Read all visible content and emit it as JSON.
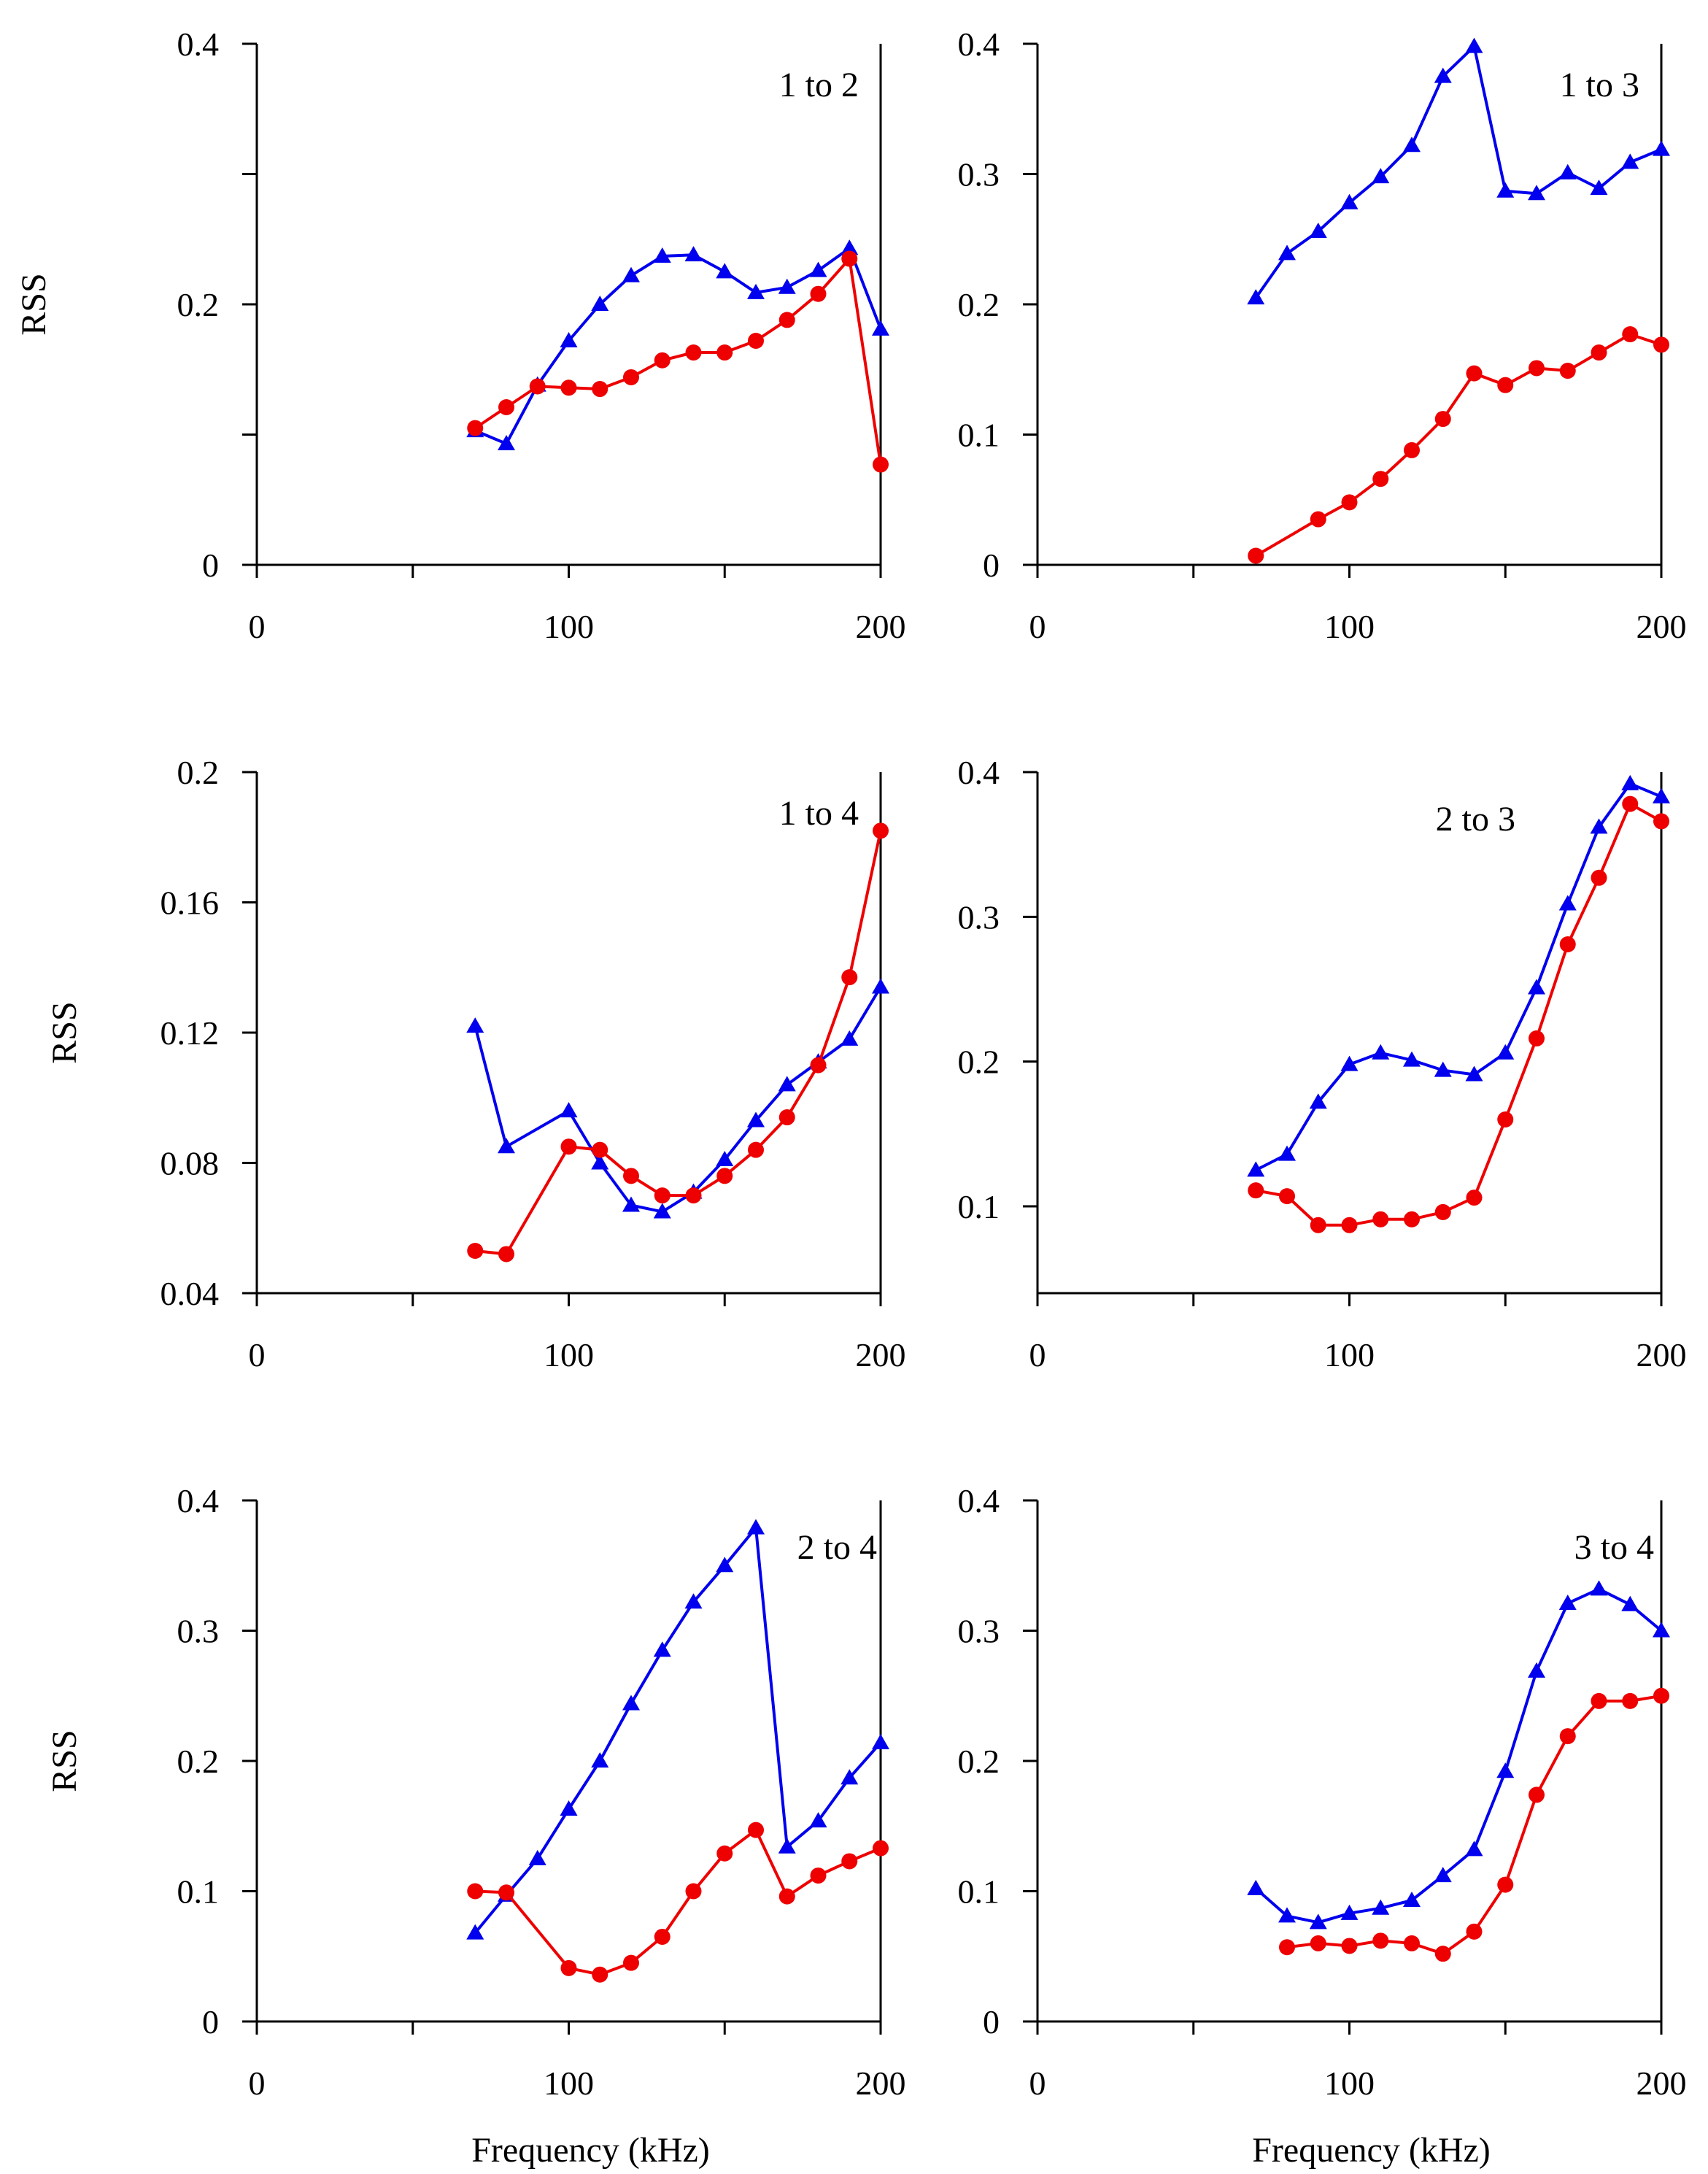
{
  "series_colors": {
    "triangle": "#0000ee",
    "circle": "#ee0000"
  },
  "chart_data": [
    {
      "type": "line",
      "label": "1 to 2",
      "ylabel": "RSS",
      "xlabel": "",
      "xlim": [
        0,
        200
      ],
      "ylim": [
        0,
        0.4
      ],
      "xticks": [
        0,
        50,
        100,
        150,
        200
      ],
      "xtick_labels": [
        "0",
        "",
        "100",
        "",
        "200"
      ],
      "yticks": [
        0,
        0.1,
        0.2,
        0.3,
        0.4
      ],
      "ytick_labels": [
        "0",
        "",
        "0.2",
        "",
        "0.4"
      ],
      "series": [
        {
          "name": "triangle",
          "marker": "triangle",
          "color": "#0000ee",
          "x": [
            70,
            80,
            90,
            100,
            110,
            120,
            130,
            140,
            150,
            160,
            170,
            180,
            190,
            200
          ],
          "y": [
            0.103,
            0.093,
            0.138,
            0.172,
            0.2,
            0.222,
            0.237,
            0.238,
            0.225,
            0.209,
            0.213,
            0.226,
            0.243,
            0.181
          ]
        },
        {
          "name": "circle",
          "marker": "circle",
          "color": "#ee0000",
          "x": [
            70,
            80,
            90,
            100,
            110,
            120,
            130,
            140,
            150,
            160,
            170,
            180,
            190,
            200
          ],
          "y": [
            0.105,
            0.121,
            0.137,
            0.136,
            0.135,
            0.144,
            0.157,
            0.163,
            0.163,
            0.172,
            0.188,
            0.208,
            0.235,
            0.077
          ]
        }
      ]
    },
    {
      "type": "line",
      "label": "1 to 3",
      "ylabel": "",
      "xlabel": "",
      "xlim": [
        0,
        200
      ],
      "ylim": [
        0,
        0.4
      ],
      "xticks": [
        0,
        50,
        100,
        150,
        200
      ],
      "xtick_labels": [
        "0",
        "",
        "100",
        "",
        "200"
      ],
      "yticks": [
        0,
        0.1,
        0.2,
        0.3,
        0.4
      ],
      "ytick_labels": [
        "0",
        "0.1",
        "0.2",
        "0.3",
        "0.4"
      ],
      "series": [
        {
          "name": "triangle",
          "marker": "triangle",
          "color": "#0000ee",
          "x": [
            70,
            80,
            90,
            100,
            110,
            120,
            130,
            140,
            150,
            160,
            170,
            180,
            190,
            200
          ],
          "y": [
            0.205,
            0.239,
            0.256,
            0.278,
            0.298,
            0.322,
            0.375,
            0.398,
            0.287,
            0.285,
            0.301,
            0.289,
            0.309,
            0.319
          ]
        },
        {
          "name": "circle",
          "marker": "circle",
          "color": "#ee0000",
          "x": [
            70,
            90,
            100,
            110,
            120,
            130,
            140,
            150,
            160,
            170,
            180,
            190,
            200
          ],
          "y": [
            0.007,
            0.035,
            0.048,
            0.066,
            0.088,
            0.112,
            0.147,
            0.138,
            0.151,
            0.149,
            0.163,
            0.177,
            0.169
          ]
        }
      ]
    },
    {
      "type": "line",
      "label": "1 to 4",
      "ylabel": "RSS",
      "xlabel": "",
      "xlim": [
        0,
        200
      ],
      "ylim": [
        0.04,
        0.2
      ],
      "xticks": [
        0,
        50,
        100,
        150,
        200
      ],
      "xtick_labels": [
        "0",
        "",
        "100",
        "",
        "200"
      ],
      "yticks": [
        0.04,
        0.08,
        0.12,
        0.16,
        0.2
      ],
      "ytick_labels": [
        "0.04",
        "0.08",
        "0.12",
        "0.16",
        "0.2"
      ],
      "series": [
        {
          "name": "triangle",
          "marker": "triangle",
          "color": "#0000ee",
          "x": [
            70,
            80,
            100,
            110,
            120,
            130,
            140,
            150,
            160,
            170,
            180,
            190,
            200
          ],
          "y": [
            0.122,
            0.085,
            0.096,
            0.08,
            0.067,
            0.065,
            0.071,
            0.081,
            0.093,
            0.104,
            0.111,
            0.118,
            0.134
          ]
        },
        {
          "name": "circle",
          "marker": "circle",
          "color": "#ee0000",
          "x": [
            70,
            80,
            100,
            110,
            120,
            130,
            140,
            150,
            160,
            170,
            180,
            190,
            200
          ],
          "y": [
            0.053,
            0.052,
            0.085,
            0.084,
            0.076,
            0.07,
            0.07,
            0.076,
            0.084,
            0.094,
            0.11,
            0.137,
            0.182
          ]
        }
      ]
    },
    {
      "type": "line",
      "label": "2 to 3",
      "ylabel": "",
      "xlabel": "",
      "xlim": [
        0,
        200
      ],
      "ylim": [
        0.04,
        0.4
      ],
      "xticks": [
        0,
        50,
        100,
        150,
        200
      ],
      "xtick_labels": [
        "0",
        "",
        "100",
        "",
        "200"
      ],
      "yticks": [
        0.1,
        0.2,
        0.3,
        0.4
      ],
      "ytick_labels": [
        "0.1",
        "0.2",
        "0.3",
        "0.4"
      ],
      "series": [
        {
          "name": "triangle",
          "marker": "triangle",
          "color": "#0000ee",
          "x": [
            70,
            80,
            90,
            100,
            110,
            120,
            130,
            140,
            150,
            160,
            170,
            180,
            190,
            200
          ],
          "y": [
            0.125,
            0.136,
            0.172,
            0.198,
            0.206,
            0.201,
            0.194,
            0.191,
            0.206,
            0.251,
            0.309,
            0.362,
            0.392,
            0.383
          ]
        },
        {
          "name": "circle",
          "marker": "circle",
          "color": "#ee0000",
          "x": [
            70,
            80,
            90,
            100,
            110,
            120,
            130,
            140,
            150,
            160,
            170,
            180,
            190,
            200
          ],
          "y": [
            0.111,
            0.107,
            0.087,
            0.087,
            0.091,
            0.091,
            0.096,
            0.106,
            0.16,
            0.216,
            0.281,
            0.327,
            0.378,
            0.366
          ]
        }
      ]
    },
    {
      "type": "line",
      "label": "2 to 4",
      "ylabel": "RSS",
      "xlabel": "Frequency (kHz)",
      "xlim": [
        0,
        200
      ],
      "ylim": [
        0,
        0.4
      ],
      "xticks": [
        0,
        50,
        100,
        150,
        200
      ],
      "xtick_labels": [
        "0",
        "",
        "100",
        "",
        "200"
      ],
      "yticks": [
        0,
        0.1,
        0.2,
        0.3,
        0.4
      ],
      "ytick_labels": [
        "0",
        "0.1",
        "0.2",
        "0.3",
        "0.4"
      ],
      "series": [
        {
          "name": "triangle",
          "marker": "triangle",
          "color": "#0000ee",
          "x": [
            70,
            80,
            90,
            100,
            110,
            120,
            130,
            140,
            150,
            160,
            170,
            180,
            190,
            200
          ],
          "y": [
            0.068,
            0.097,
            0.125,
            0.163,
            0.2,
            0.244,
            0.285,
            0.322,
            0.35,
            0.379,
            0.134,
            0.154,
            0.187,
            0.214
          ]
        },
        {
          "name": "circle",
          "marker": "circle",
          "color": "#ee0000",
          "x": [
            70,
            80,
            100,
            110,
            120,
            130,
            140,
            150,
            160,
            170,
            180,
            190,
            200
          ],
          "y": [
            0.1,
            0.099,
            0.041,
            0.036,
            0.045,
            0.065,
            0.1,
            0.129,
            0.147,
            0.096,
            0.112,
            0.123,
            0.133
          ]
        }
      ]
    },
    {
      "type": "line",
      "label": "3 to 4",
      "ylabel": "",
      "xlabel": "Frequency (kHz)",
      "xlim": [
        0,
        200
      ],
      "ylim": [
        0,
        0.4
      ],
      "xticks": [
        0,
        50,
        100,
        150,
        200
      ],
      "xtick_labels": [
        "0",
        "",
        "100",
        "",
        "200"
      ],
      "yticks": [
        0,
        0.1,
        0.2,
        0.3,
        0.4
      ],
      "ytick_labels": [
        "0",
        "0.1",
        "0.2",
        "0.3",
        "0.4"
      ],
      "series": [
        {
          "name": "triangle",
          "marker": "triangle",
          "color": "#0000ee",
          "x": [
            70,
            80,
            90,
            100,
            110,
            120,
            130,
            140,
            150,
            160,
            170,
            180,
            190,
            200
          ],
          "y": [
            0.102,
            0.081,
            0.076,
            0.083,
            0.087,
            0.093,
            0.112,
            0.132,
            0.192,
            0.269,
            0.321,
            0.332,
            0.32,
            0.3
          ]
        },
        {
          "name": "circle",
          "marker": "circle",
          "color": "#ee0000",
          "x": [
            80,
            90,
            100,
            110,
            120,
            130,
            140,
            150,
            160,
            170,
            180,
            190,
            200
          ],
          "y": [
            0.057,
            0.06,
            0.058,
            0.062,
            0.06,
            0.052,
            0.069,
            0.105,
            0.174,
            0.219,
            0.246,
            0.246,
            0.25
          ]
        }
      ]
    }
  ]
}
